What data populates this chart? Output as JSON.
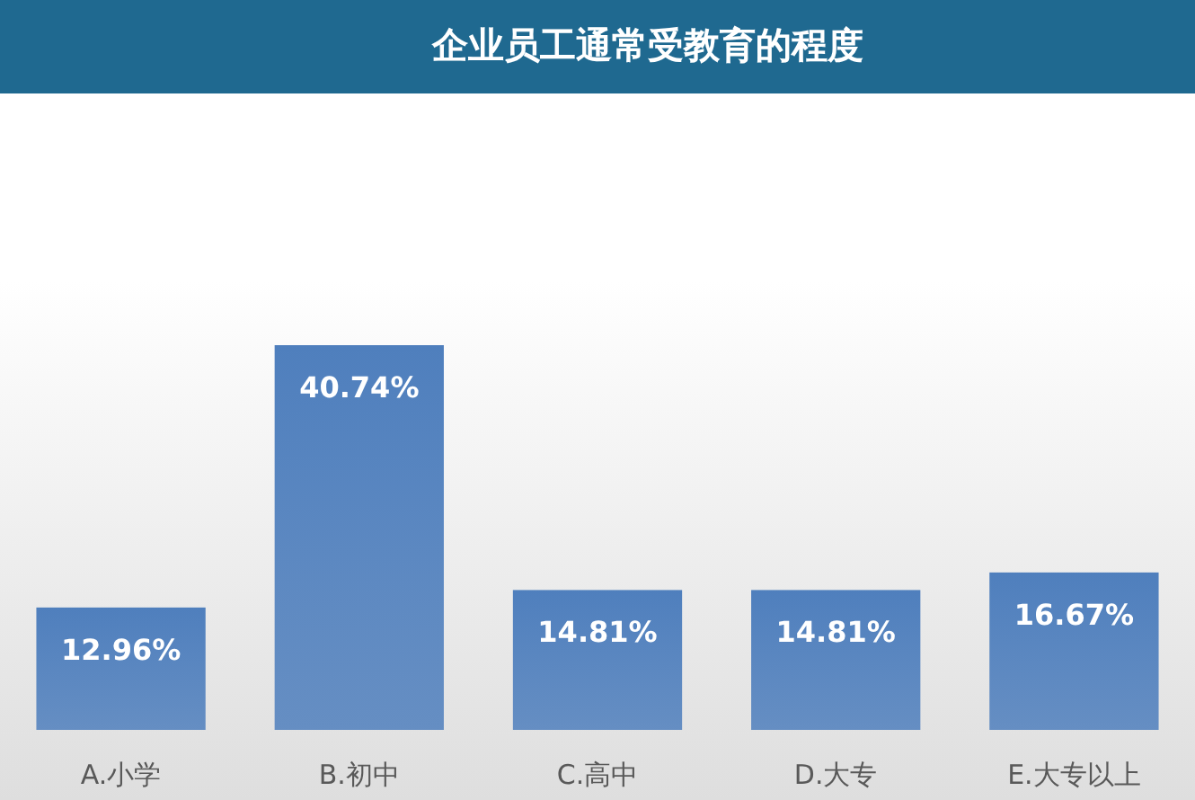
{
  "chart_data": {
    "type": "bar",
    "title": "企业员工通常受教育的程度",
    "categories": [
      "A.小学",
      "B.初中",
      "C.高中",
      "D.大专",
      "E.大专以上"
    ],
    "values": [
      12.96,
      40.74,
      14.81,
      14.81,
      16.67
    ],
    "value_labels": [
      "12.96%",
      "40.74%",
      "14.81%",
      "14.81%",
      "16.67%"
    ],
    "color": "#4f7fbd"
  }
}
